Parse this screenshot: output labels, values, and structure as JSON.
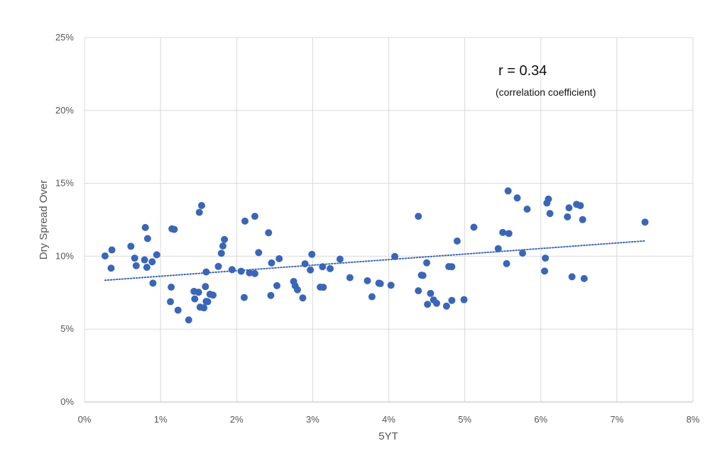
{
  "chart_data": {
    "type": "scatter",
    "xlabel": "5YT",
    "ylabel": "Dry Spread Over",
    "xlim": [
      0,
      0.08
    ],
    "ylim": [
      0,
      0.25
    ],
    "x_ticks": [
      "0%",
      "1%",
      "2%",
      "3%",
      "4%",
      "5%",
      "6%",
      "7%",
      "8%"
    ],
    "y_ticks": [
      "0%",
      "5%",
      "10%",
      "15%",
      "20%",
      "25%"
    ],
    "grid": true,
    "annotations": {
      "main": "r = 0.34",
      "sub": "(correlation coefficient)"
    },
    "trendline": {
      "style": "dotted",
      "x": [
        0.0027,
        0.0737
      ],
      "y": [
        0.0835,
        0.1105
      ]
    },
    "colors": {
      "points": "#3a66b8",
      "trendline": "#3a66b8",
      "grid": "#d9d9d9"
    },
    "points": [
      [
        0.0027,
        0.1002
      ],
      [
        0.0035,
        0.0918
      ],
      [
        0.0036,
        0.1043
      ],
      [
        0.0061,
        0.1068
      ],
      [
        0.0066,
        0.0987
      ],
      [
        0.0068,
        0.0935
      ],
      [
        0.0079,
        0.0975
      ],
      [
        0.008,
        0.1197
      ],
      [
        0.0082,
        0.0924
      ],
      [
        0.0083,
        0.1121
      ],
      [
        0.0089,
        0.0962
      ],
      [
        0.009,
        0.0815
      ],
      [
        0.0095,
        0.101
      ],
      [
        0.0113,
        0.0688
      ],
      [
        0.0114,
        0.0788
      ],
      [
        0.0115,
        0.1188
      ],
      [
        0.0118,
        0.1184
      ],
      [
        0.0123,
        0.063
      ],
      [
        0.0137,
        0.0563
      ],
      [
        0.0144,
        0.0759
      ],
      [
        0.0145,
        0.0707
      ],
      [
        0.015,
        0.0753
      ],
      [
        0.0151,
        0.1301
      ],
      [
        0.0152,
        0.0651
      ],
      [
        0.0154,
        0.1348
      ],
      [
        0.0157,
        0.0646
      ],
      [
        0.0159,
        0.0792
      ],
      [
        0.016,
        0.0892
      ],
      [
        0.016,
        0.069
      ],
      [
        0.0162,
        0.0688
      ],
      [
        0.0165,
        0.0739
      ],
      [
        0.0169,
        0.0733
      ],
      [
        0.0176,
        0.093
      ],
      [
        0.018,
        0.102
      ],
      [
        0.0182,
        0.107
      ],
      [
        0.0184,
        0.1115
      ],
      [
        0.0194,
        0.0908
      ],
      [
        0.0206,
        0.0897
      ],
      [
        0.021,
        0.0717
      ],
      [
        0.0211,
        0.1241
      ],
      [
        0.0217,
        0.0886
      ],
      [
        0.0224,
        0.0881
      ],
      [
        0.0224,
        0.1274
      ],
      [
        0.0229,
        0.1025
      ],
      [
        0.0242,
        0.1161
      ],
      [
        0.0245,
        0.0731
      ],
      [
        0.0246,
        0.0954
      ],
      [
        0.0253,
        0.0798
      ],
      [
        0.0256,
        0.0983
      ],
      [
        0.0275,
        0.0827
      ],
      [
        0.0277,
        0.0797
      ],
      [
        0.028,
        0.077
      ],
      [
        0.0287,
        0.0714
      ],
      [
        0.029,
        0.0948
      ],
      [
        0.0297,
        0.0906
      ],
      [
        0.0299,
        0.1013
      ],
      [
        0.031,
        0.0788
      ],
      [
        0.0313,
        0.0928
      ],
      [
        0.0314,
        0.0787
      ],
      [
        0.0323,
        0.0915
      ],
      [
        0.0336,
        0.098
      ],
      [
        0.0349,
        0.0853
      ],
      [
        0.0372,
        0.0832
      ],
      [
        0.0378,
        0.0722
      ],
      [
        0.0387,
        0.0815
      ],
      [
        0.0389,
        0.0812
      ],
      [
        0.0403,
        0.0801
      ],
      [
        0.0408,
        0.0998
      ],
      [
        0.0439,
        0.0763
      ],
      [
        0.0439,
        0.1274
      ],
      [
        0.0443,
        0.087
      ],
      [
        0.0445,
        0.0868
      ],
      [
        0.045,
        0.0955
      ],
      [
        0.0451,
        0.067
      ],
      [
        0.0455,
        0.0745
      ],
      [
        0.0459,
        0.07
      ],
      [
        0.0463,
        0.0677
      ],
      [
        0.0476,
        0.0658
      ],
      [
        0.0479,
        0.0929
      ],
      [
        0.0483,
        0.0928
      ],
      [
        0.0483,
        0.0697
      ],
      [
        0.049,
        0.1104
      ],
      [
        0.0499,
        0.0702
      ],
      [
        0.0512,
        0.1199
      ],
      [
        0.0544,
        0.1052
      ],
      [
        0.055,
        0.1163
      ],
      [
        0.0555,
        0.0949
      ],
      [
        0.0557,
        0.1448
      ],
      [
        0.0558,
        0.1156
      ],
      [
        0.0569,
        0.14
      ],
      [
        0.0576,
        0.1021
      ],
      [
        0.0582,
        0.1323
      ],
      [
        0.0605,
        0.0898
      ],
      [
        0.0606,
        0.0987
      ],
      [
        0.0608,
        0.1365
      ],
      [
        0.061,
        0.1392
      ],
      [
        0.0612,
        0.1293
      ],
      [
        0.0635,
        0.127
      ],
      [
        0.0637,
        0.1332
      ],
      [
        0.0641,
        0.0859
      ],
      [
        0.0647,
        0.1356
      ],
      [
        0.0652,
        0.1347
      ],
      [
        0.0655,
        0.1251
      ],
      [
        0.0657,
        0.0847
      ],
      [
        0.0737,
        0.1234
      ]
    ]
  }
}
